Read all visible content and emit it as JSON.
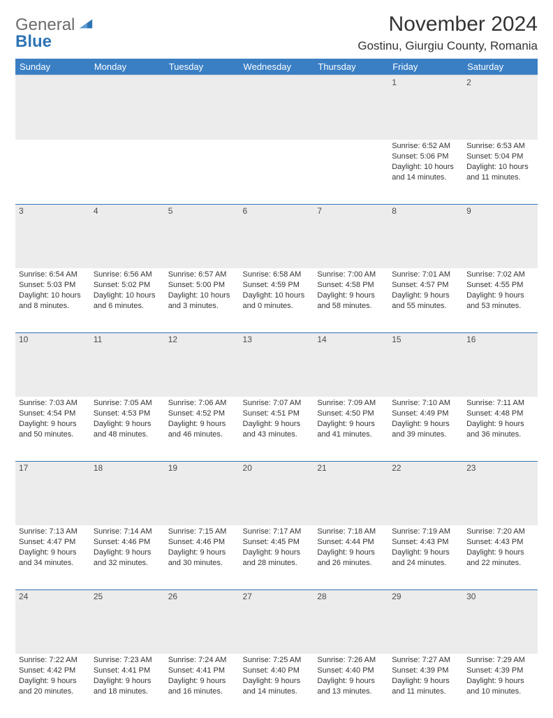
{
  "brand": {
    "word1": "General",
    "word2": "Blue"
  },
  "header": {
    "month": "November 2024",
    "location": "Gostinu, Giurgiu County, Romania"
  },
  "colors": {
    "header_blue": "#3a7fc4",
    "accent_blue": "#2e74b5",
    "row_gray": "#ececec",
    "text": "#333333",
    "background": "#ffffff"
  },
  "weekdays": [
    "Sunday",
    "Monday",
    "Tuesday",
    "Wednesday",
    "Thursday",
    "Friday",
    "Saturday"
  ],
  "days": [
    {
      "n": "",
      "sunrise": "",
      "sunset": "",
      "daylight": ""
    },
    {
      "n": "",
      "sunrise": "",
      "sunset": "",
      "daylight": ""
    },
    {
      "n": "",
      "sunrise": "",
      "sunset": "",
      "daylight": ""
    },
    {
      "n": "",
      "sunrise": "",
      "sunset": "",
      "daylight": ""
    },
    {
      "n": "",
      "sunrise": "",
      "sunset": "",
      "daylight": ""
    },
    {
      "n": "1",
      "sunrise": "Sunrise: 6:52 AM",
      "sunset": "Sunset: 5:06 PM",
      "daylight": "Daylight: 10 hours and 14 minutes."
    },
    {
      "n": "2",
      "sunrise": "Sunrise: 6:53 AM",
      "sunset": "Sunset: 5:04 PM",
      "daylight": "Daylight: 10 hours and 11 minutes."
    },
    {
      "n": "3",
      "sunrise": "Sunrise: 6:54 AM",
      "sunset": "Sunset: 5:03 PM",
      "daylight": "Daylight: 10 hours and 8 minutes."
    },
    {
      "n": "4",
      "sunrise": "Sunrise: 6:56 AM",
      "sunset": "Sunset: 5:02 PM",
      "daylight": "Daylight: 10 hours and 6 minutes."
    },
    {
      "n": "5",
      "sunrise": "Sunrise: 6:57 AM",
      "sunset": "Sunset: 5:00 PM",
      "daylight": "Daylight: 10 hours and 3 minutes."
    },
    {
      "n": "6",
      "sunrise": "Sunrise: 6:58 AM",
      "sunset": "Sunset: 4:59 PM",
      "daylight": "Daylight: 10 hours and 0 minutes."
    },
    {
      "n": "7",
      "sunrise": "Sunrise: 7:00 AM",
      "sunset": "Sunset: 4:58 PM",
      "daylight": "Daylight: 9 hours and 58 minutes."
    },
    {
      "n": "8",
      "sunrise": "Sunrise: 7:01 AM",
      "sunset": "Sunset: 4:57 PM",
      "daylight": "Daylight: 9 hours and 55 minutes."
    },
    {
      "n": "9",
      "sunrise": "Sunrise: 7:02 AM",
      "sunset": "Sunset: 4:55 PM",
      "daylight": "Daylight: 9 hours and 53 minutes."
    },
    {
      "n": "10",
      "sunrise": "Sunrise: 7:03 AM",
      "sunset": "Sunset: 4:54 PM",
      "daylight": "Daylight: 9 hours and 50 minutes."
    },
    {
      "n": "11",
      "sunrise": "Sunrise: 7:05 AM",
      "sunset": "Sunset: 4:53 PM",
      "daylight": "Daylight: 9 hours and 48 minutes."
    },
    {
      "n": "12",
      "sunrise": "Sunrise: 7:06 AM",
      "sunset": "Sunset: 4:52 PM",
      "daylight": "Daylight: 9 hours and 46 minutes."
    },
    {
      "n": "13",
      "sunrise": "Sunrise: 7:07 AM",
      "sunset": "Sunset: 4:51 PM",
      "daylight": "Daylight: 9 hours and 43 minutes."
    },
    {
      "n": "14",
      "sunrise": "Sunrise: 7:09 AM",
      "sunset": "Sunset: 4:50 PM",
      "daylight": "Daylight: 9 hours and 41 minutes."
    },
    {
      "n": "15",
      "sunrise": "Sunrise: 7:10 AM",
      "sunset": "Sunset: 4:49 PM",
      "daylight": "Daylight: 9 hours and 39 minutes."
    },
    {
      "n": "16",
      "sunrise": "Sunrise: 7:11 AM",
      "sunset": "Sunset: 4:48 PM",
      "daylight": "Daylight: 9 hours and 36 minutes."
    },
    {
      "n": "17",
      "sunrise": "Sunrise: 7:13 AM",
      "sunset": "Sunset: 4:47 PM",
      "daylight": "Daylight: 9 hours and 34 minutes."
    },
    {
      "n": "18",
      "sunrise": "Sunrise: 7:14 AM",
      "sunset": "Sunset: 4:46 PM",
      "daylight": "Daylight: 9 hours and 32 minutes."
    },
    {
      "n": "19",
      "sunrise": "Sunrise: 7:15 AM",
      "sunset": "Sunset: 4:46 PM",
      "daylight": "Daylight: 9 hours and 30 minutes."
    },
    {
      "n": "20",
      "sunrise": "Sunrise: 7:17 AM",
      "sunset": "Sunset: 4:45 PM",
      "daylight": "Daylight: 9 hours and 28 minutes."
    },
    {
      "n": "21",
      "sunrise": "Sunrise: 7:18 AM",
      "sunset": "Sunset: 4:44 PM",
      "daylight": "Daylight: 9 hours and 26 minutes."
    },
    {
      "n": "22",
      "sunrise": "Sunrise: 7:19 AM",
      "sunset": "Sunset: 4:43 PM",
      "daylight": "Daylight: 9 hours and 24 minutes."
    },
    {
      "n": "23",
      "sunrise": "Sunrise: 7:20 AM",
      "sunset": "Sunset: 4:43 PM",
      "daylight": "Daylight: 9 hours and 22 minutes."
    },
    {
      "n": "24",
      "sunrise": "Sunrise: 7:22 AM",
      "sunset": "Sunset: 4:42 PM",
      "daylight": "Daylight: 9 hours and 20 minutes."
    },
    {
      "n": "25",
      "sunrise": "Sunrise: 7:23 AM",
      "sunset": "Sunset: 4:41 PM",
      "daylight": "Daylight: 9 hours and 18 minutes."
    },
    {
      "n": "26",
      "sunrise": "Sunrise: 7:24 AM",
      "sunset": "Sunset: 4:41 PM",
      "daylight": "Daylight: 9 hours and 16 minutes."
    },
    {
      "n": "27",
      "sunrise": "Sunrise: 7:25 AM",
      "sunset": "Sunset: 4:40 PM",
      "daylight": "Daylight: 9 hours and 14 minutes."
    },
    {
      "n": "28",
      "sunrise": "Sunrise: 7:26 AM",
      "sunset": "Sunset: 4:40 PM",
      "daylight": "Daylight: 9 hours and 13 minutes."
    },
    {
      "n": "29",
      "sunrise": "Sunrise: 7:27 AM",
      "sunset": "Sunset: 4:39 PM",
      "daylight": "Daylight: 9 hours and 11 minutes."
    },
    {
      "n": "30",
      "sunrise": "Sunrise: 7:29 AM",
      "sunset": "Sunset: 4:39 PM",
      "daylight": "Daylight: 9 hours and 10 minutes."
    }
  ]
}
